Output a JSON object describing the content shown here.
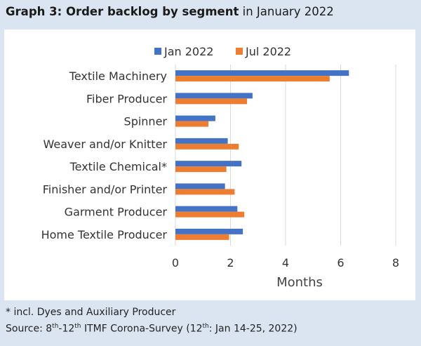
{
  "header": {
    "title_bold": "Graph 3: Order backlog by segment",
    "title_rest": " in January 2022"
  },
  "footer": {
    "footnote": "* incl. Dyes and Auxiliary Producer",
    "source_prefix": "Source: 8",
    "source_sup1": "th",
    "source_mid": "-12",
    "source_sup2": "th",
    "source_mid2": " ITMF Corona-Survey (12",
    "source_sup3": "th",
    "source_end": ": Jan 14-25, 2022)"
  },
  "chart_data": {
    "type": "bar",
    "orientation": "horizontal",
    "categories": [
      "Textile Machinery",
      "Fiber Producer",
      "Spinner",
      "Weaver and/or Knitter",
      "Textile Chemical*",
      "Finisher and/or Printer",
      "Garment Producer",
      "Home Textile Producer"
    ],
    "series": [
      {
        "name": "Jan 2022",
        "color": "#4472c4",
        "values": [
          6.3,
          2.8,
          1.45,
          1.9,
          2.4,
          1.8,
          2.25,
          2.45
        ]
      },
      {
        "name": "Jul 2022",
        "color": "#ed7d31",
        "values": [
          5.6,
          2.6,
          1.2,
          2.3,
          1.85,
          2.15,
          2.5,
          1.95
        ]
      }
    ],
    "xlabel": "Months",
    "xlim": [
      0,
      8
    ],
    "xticks": [
      0,
      2,
      4,
      6,
      8
    ],
    "grid": true,
    "legend_position": "top"
  }
}
